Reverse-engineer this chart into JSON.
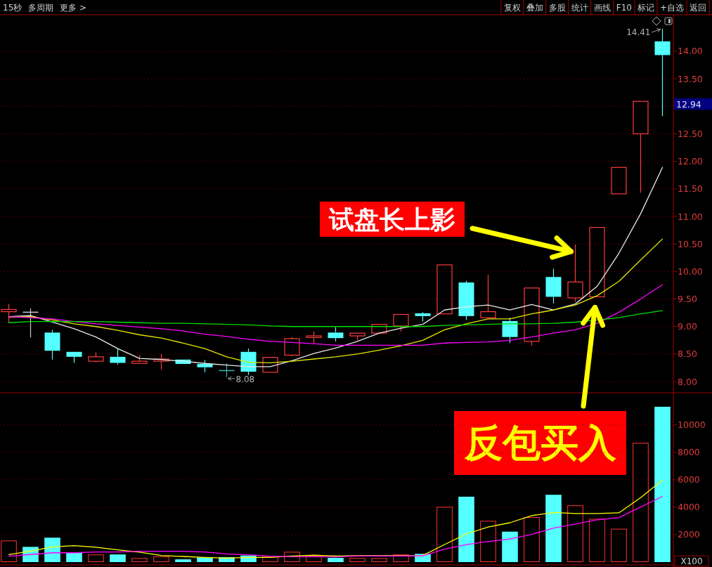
{
  "chart_data": [
    {
      "type": "other",
      "annotations": [
        "15秒",
        "多周期",
        "更多 >",
        "复权",
        "叠加",
        "多股",
        "统计",
        "画线",
        "F10",
        "标记",
        "+自选",
        "返回"
      ]
    },
    {
      "type": "candlestick",
      "categories": [
        null,
        null,
        null,
        null,
        null,
        null,
        null,
        null,
        null,
        null,
        null,
        null,
        null,
        null,
        null,
        null,
        null,
        null,
        null,
        null,
        null,
        null,
        null,
        null,
        null,
        null,
        null,
        null,
        null,
        null,
        null
      ],
      "ohlc": [
        [
          9.27,
          9.41,
          9.07,
          9.31
        ],
        [
          9.26,
          9.33,
          8.8,
          9.26
        ],
        [
          8.89,
          8.94,
          8.4,
          8.56
        ],
        [
          8.54,
          8.54,
          8.34,
          8.45
        ],
        [
          8.37,
          8.53,
          8.35,
          8.45
        ],
        [
          8.45,
          8.6,
          8.31,
          8.34
        ],
        [
          8.33,
          8.48,
          8.33,
          8.37
        ],
        [
          8.37,
          8.5,
          8.22,
          8.41
        ],
        [
          8.4,
          8.4,
          8.32,
          8.32
        ],
        [
          8.32,
          8.39,
          8.17,
          8.26
        ],
        [
          8.2,
          8.33,
          8.08,
          8.2
        ],
        [
          8.54,
          8.6,
          8.12,
          8.18
        ],
        [
          8.17,
          8.44,
          8.17,
          8.44
        ],
        [
          8.48,
          8.81,
          8.46,
          8.78
        ],
        [
          8.8,
          8.91,
          8.7,
          8.83
        ],
        [
          8.89,
          8.99,
          8.73,
          8.79
        ],
        [
          8.83,
          8.88,
          8.75,
          8.88
        ],
        [
          8.88,
          9.04,
          8.88,
          9.04
        ],
        [
          9.01,
          9.22,
          8.91,
          9.22
        ],
        [
          9.24,
          9.26,
          9.09,
          9.19
        ],
        [
          9.23,
          10.12,
          9.23,
          10.12
        ],
        [
          9.8,
          9.83,
          9.12,
          9.19
        ],
        [
          9.16,
          9.94,
          9.16,
          9.27
        ],
        [
          9.1,
          9.16,
          8.7,
          8.81
        ],
        [
          8.73,
          9.7,
          8.65,
          9.7
        ],
        [
          9.9,
          10.05,
          9.42,
          9.54
        ],
        [
          9.52,
          10.49,
          9.45,
          9.81
        ],
        [
          9.54,
          10.8,
          9.54,
          10.8
        ],
        [
          11.41,
          11.89,
          11.41,
          11.89
        ],
        [
          12.5,
          13.09,
          11.43,
          13.09
        ],
        [
          14.18,
          14.41,
          12.82,
          13.93
        ]
      ],
      "colors": [
        "#ff3c3c",
        "#c8c8c8",
        "#54ffff",
        "#54ffff",
        "#ff3c3c",
        "#54ffff",
        "#ff3c3c",
        "#ff3c3c",
        "#54ffff",
        "#54ffff",
        "#3cb4b4",
        "#54ffff",
        "#ff3c3c",
        "#ff3c3c",
        "#ff3c3c",
        "#54ffff",
        "#ff3c3c",
        "#ff3c3c",
        "#ff3c3c",
        "#54ffff",
        "#ff3c3c",
        "#54ffff",
        "#ff3c3c",
        "#54ffff",
        "#ff3c3c",
        "#54ffff",
        "#ff3c3c",
        "#ff3c3c",
        "#ff3c3c",
        "#ff3c3c",
        "#54ffff"
      ],
      "series": [
        {
          "type": "line",
          "color": "#e8e8e8",
          "values": [
            9.18,
            9.2,
            9.08,
            8.96,
            8.81,
            8.6,
            8.42,
            8.4,
            8.37,
            8.33,
            8.3,
            8.27,
            8.27,
            8.38,
            8.51,
            8.61,
            8.73,
            8.88,
            8.97,
            9.04,
            9.3,
            9.36,
            9.39,
            9.3,
            9.4,
            9.3,
            9.41,
            9.73,
            10.33,
            11.05,
            11.89
          ]
        },
        {
          "type": "line",
          "color": "#e6e600",
          "values": [
            9.17,
            9.18,
            9.12,
            9.05,
            9.0,
            8.93,
            8.85,
            8.79,
            8.7,
            8.6,
            8.45,
            8.35,
            8.34,
            8.37,
            8.41,
            8.45,
            8.5,
            8.57,
            8.65,
            8.75,
            8.94,
            9.05,
            9.14,
            9.14,
            9.23,
            9.3,
            9.39,
            9.56,
            9.82,
            10.21,
            10.59
          ]
        },
        {
          "type": "line",
          "color": "#ff00ff",
          "values": [
            9.18,
            9.16,
            9.14,
            9.09,
            9.05,
            9.02,
            8.99,
            8.96,
            8.92,
            8.86,
            8.82,
            8.77,
            8.73,
            8.71,
            8.69,
            8.66,
            8.66,
            8.66,
            8.66,
            8.66,
            8.7,
            8.71,
            8.72,
            8.75,
            8.81,
            8.88,
            8.94,
            9.06,
            9.26,
            9.5,
            9.76
          ]
        },
        {
          "type": "line",
          "color": "#00e000",
          "values": [
            9.07,
            9.09,
            9.09,
            9.09,
            9.09,
            9.08,
            9.07,
            9.06,
            9.06,
            9.05,
            9.04,
            9.03,
            9.01,
            9.0,
            9.0,
            9.0,
            9.0,
            9.0,
            9.0,
            9.0,
            9.02,
            9.03,
            9.04,
            9.05,
            9.05,
            9.06,
            9.08,
            9.12,
            9.16,
            9.23,
            9.29
          ]
        }
      ],
      "ylim": [
        7.81,
        14.65
      ],
      "yticks": [
        {
          "value": 8,
          "label": "8.00"
        },
        {
          "value": 8.5,
          "label": "8.50"
        },
        {
          "value": 9,
          "label": "9.00"
        },
        {
          "value": 9.5,
          "label": "9.50"
        },
        {
          "value": 10,
          "label": "10.00"
        },
        {
          "value": 10.5,
          "label": "10.50"
        },
        {
          "value": 11,
          "label": "11.00"
        },
        {
          "value": 11.5,
          "label": "11.50"
        },
        {
          "value": 12,
          "label": "12.00"
        },
        {
          "value": 12.5,
          "label": "12.50"
        },
        {
          "value": 13,
          "label": null
        },
        {
          "value": 13.5,
          "label": "13.50"
        },
        {
          "value": 14,
          "label": "14.00"
        }
      ],
      "grid": "y",
      "tick_labels": "y",
      "annotations": [
        "14.41",
        "8.08",
        "12.94",
        "试盘长上影",
        "反包买入"
      ]
    },
    {
      "type": "bar",
      "categories": [
        null,
        null,
        null,
        null,
        null,
        null,
        null,
        null,
        null,
        null,
        null,
        null,
        null,
        null,
        null,
        null,
        null,
        null,
        null,
        null,
        null,
        null,
        null,
        null,
        null,
        null,
        null,
        null,
        null,
        null,
        null
      ],
      "series": [
        {
          "colors": [
            "#ff3232",
            "#54ffff",
            "#54ffff",
            "#54ffff",
            "#ff3232",
            "#54ffff",
            "#ff3232",
            "#ff3232",
            "#54ffff",
            "#54ffff",
            "#54ffff",
            "#54ffff",
            "#ff3232",
            "#ff3232",
            "#ff3232",
            "#54ffff",
            "#ff3232",
            "#ff3232",
            "#ff3232",
            "#54ffff",
            "#ff3232",
            "#54ffff",
            "#ff3232",
            "#54ffff",
            "#ff3232",
            "#54ffff",
            "#ff3232",
            "#ff3232",
            "#ff3232",
            "#ff3232",
            "#54ffff"
          ],
          "values": [
            1570,
            1110,
            1780,
            680,
            550,
            560,
            290,
            410,
            200,
            340,
            360,
            480,
            430,
            750,
            440,
            310,
            300,
            290,
            550,
            600,
            4030,
            4770,
            3010,
            2220,
            3280,
            4910,
            4140,
            3150,
            2430,
            8700,
            11330
          ]
        },
        {
          "type": "line",
          "color": "#ffff00",
          "values": [
            550,
            800,
            1110,
            1200,
            1080,
            890,
            720,
            480,
            410,
            340,
            290,
            340,
            340,
            440,
            500,
            440,
            460,
            460,
            460,
            480,
            1280,
            2050,
            2560,
            2870,
            3390,
            3620,
            3540,
            3540,
            3590,
            4700,
            5980
          ]
        },
        {
          "type": "line",
          "color": "#ff00ff",
          "values": [
            430,
            550,
            680,
            680,
            740,
            740,
            790,
            790,
            790,
            740,
            600,
            530,
            430,
            390,
            390,
            380,
            440,
            440,
            440,
            460,
            940,
            1280,
            1500,
            1680,
            2020,
            2480,
            2770,
            3080,
            3250,
            4020,
            4790
          ]
        }
      ],
      "ylim": [
        0,
        12300
      ],
      "yticks": [
        2000,
        4000,
        6000,
        8000,
        10000
      ],
      "ylabel": "X100",
      "grid": "y",
      "tick_labels": "y"
    }
  ]
}
